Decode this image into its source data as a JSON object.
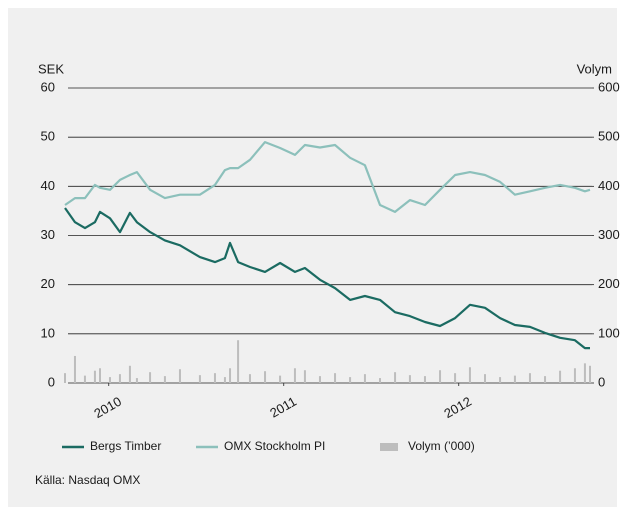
{
  "chart_data": {
    "type": "line",
    "ylabel": "SEK",
    "y2label": "Volym",
    "source": "Källa: Nasdaq OMX",
    "x": [
      2009.75,
      2009.807,
      2009.864,
      2009.921,
      2009.95,
      2010.007,
      2010.064,
      2010.121,
      2010.161,
      2010.236,
      2010.321,
      2010.407,
      2010.521,
      2010.607,
      2010.664,
      2010.693,
      2010.739,
      2010.807,
      2010.893,
      2010.979,
      2011.064,
      2011.121,
      2011.207,
      2011.293,
      2011.379,
      2011.464,
      2011.55,
      2011.636,
      2011.721,
      2011.807,
      2011.893,
      2011.979,
      2012.064,
      2012.15,
      2012.236,
      2012.321,
      2012.407,
      2012.493,
      2012.579,
      2012.664,
      2012.721,
      2012.75
    ],
    "xlim": [
      2009.75,
      2012.75
    ],
    "xticks": [
      2010,
      2011,
      2012
    ],
    "ylim": [
      0,
      60
    ],
    "yticks": [
      0,
      10,
      20,
      30,
      40,
      50,
      60
    ],
    "y2lim": [
      0,
      600
    ],
    "y2ticks": [
      0,
      100,
      200,
      300,
      400,
      500,
      600
    ],
    "grid": true,
    "legend": "bottom",
    "series": [
      {
        "name": "Bergs Timber",
        "color": "#1b6b62",
        "type": "line",
        "values": [
          35.6,
          32.7,
          31.5,
          32.7,
          34.8,
          33.5,
          30.7,
          34.6,
          32.7,
          30.7,
          29,
          28,
          25.6,
          24.6,
          25.4,
          28.5,
          24.6,
          23.6,
          22.6,
          24.4,
          22.6,
          23.4,
          21,
          19.3,
          16.9,
          17.7,
          16.9,
          14.4,
          13.6,
          12.4,
          11.6,
          13.2,
          15.9,
          15.3,
          13.2,
          11.8,
          11.4,
          10.2,
          9.2,
          8.7,
          7.1,
          7.1
        ]
      },
      {
        "name": "OMX Stockholm PI",
        "color": "#8cc0bb",
        "type": "line",
        "values": [
          36.2,
          37.6,
          37.6,
          40.3,
          39.7,
          39.3,
          41.3,
          42.3,
          42.9,
          39.3,
          37.6,
          38.3,
          38.3,
          40.3,
          43.3,
          43.7,
          43.7,
          45.4,
          49,
          47.8,
          46.4,
          48.4,
          47.9,
          48.4,
          45.8,
          44.3,
          36.2,
          34.8,
          37.2,
          36.2,
          39.3,
          42.3,
          42.9,
          42.3,
          40.9,
          38.3,
          39,
          39.7,
          40.3,
          39.7,
          39,
          39.3
        ]
      },
      {
        "name": "Volym (’000)",
        "color": "#bdbdbd",
        "type": "bar",
        "axis": "y2",
        "values": [
          20,
          55,
          15,
          25,
          30,
          12,
          18,
          35,
          10,
          22,
          14,
          28,
          16,
          20,
          12,
          30,
          87,
          18,
          24,
          15,
          30,
          26,
          14,
          20,
          12,
          18,
          10,
          22,
          16,
          14,
          26,
          20,
          32,
          18,
          12,
          15,
          20,
          14,
          25,
          30,
          40,
          35
        ]
      }
    ]
  }
}
